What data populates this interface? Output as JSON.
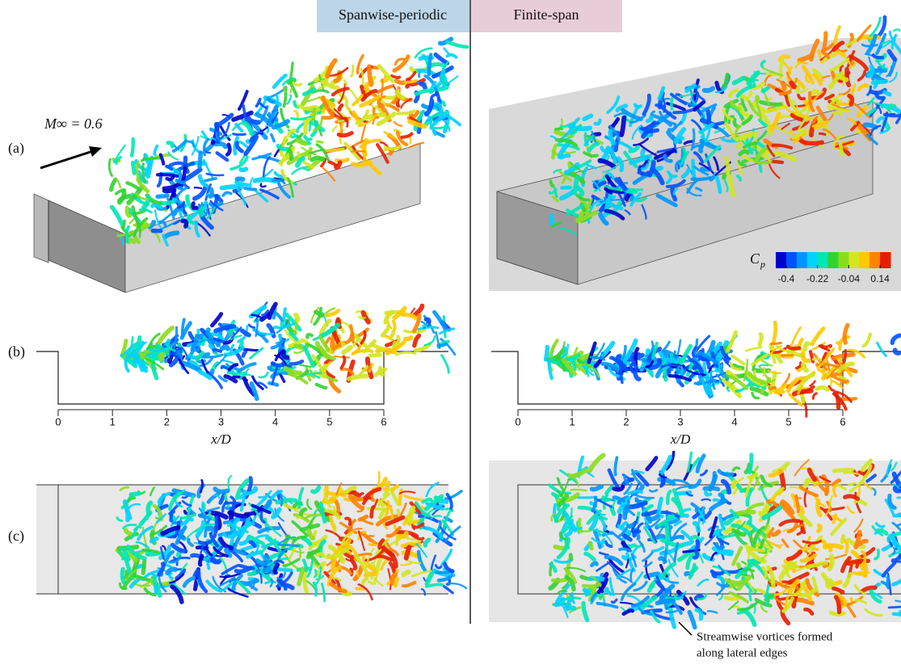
{
  "headers": {
    "left": "Spanwise-periodic",
    "right": "Finite-span"
  },
  "panel_labels": [
    "(a)",
    "(b)",
    "(c)"
  ],
  "freestream_label": "M∞ = 0.6",
  "colorbar": {
    "label": "C",
    "label_subscript": "p",
    "clim": [
      -0.46,
      0.2
    ],
    "ticks": [
      -0.4,
      -0.22,
      -0.04,
      0.14
    ],
    "colors": [
      "#0000c8",
      "#0050ff",
      "#0096ff",
      "#00d2ff",
      "#00e6b4",
      "#32d232",
      "#8cdc1e",
      "#d2e61e",
      "#ffc800",
      "#ff8200",
      "#e61e00"
    ]
  },
  "axes": [
    {
      "xlabel": "x/D",
      "xlim": [
        0,
        6
      ],
      "xticks": [
        0,
        1,
        2,
        3,
        4,
        5,
        6
      ]
    },
    {
      "xlabel": "x/D",
      "xlim": [
        0,
        6
      ],
      "xticks": [
        0,
        1,
        2,
        3,
        4,
        5,
        6
      ]
    }
  ],
  "annotation": [
    "Streamwise vortices formed",
    "along lateral edges"
  ]
}
